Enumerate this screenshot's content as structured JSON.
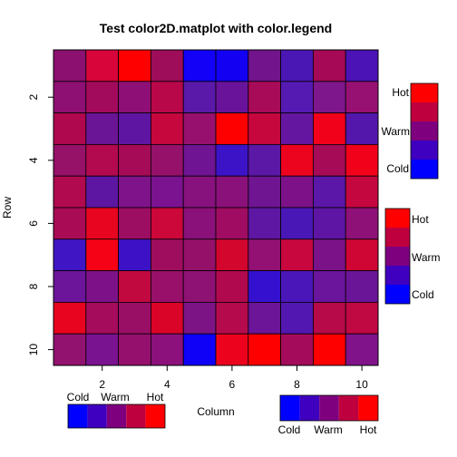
{
  "chart_data": {
    "type": "heatmap",
    "title": "Test color2D.matplot with color.legend",
    "xlabel": "Column",
    "ylabel": "Row",
    "x_ticks": [
      "2",
      "4",
      "6",
      "8",
      "10"
    ],
    "y_ticks": [
      "2",
      "4",
      "6",
      "8",
      "10"
    ],
    "x_range": [
      1,
      10
    ],
    "y_range": [
      1,
      10
    ],
    "grid": false,
    "cell_colors": [
      [
        "#8b1070",
        "#d7053a",
        "#ff0000",
        "#9e0d5a",
        "#1200f7",
        "#1300f3",
        "#72158c",
        "#4a17b5",
        "#a60a56",
        "#4b13b6"
      ],
      [
        "#8e1072",
        "#a20b5b",
        "#8e1076",
        "#b9084a",
        "#5a19a8",
        "#68139a",
        "#a80b57",
        "#541ab1",
        "#7f178c",
        "#971173"
      ],
      [
        "#b0084e",
        "#6a1596",
        "#5e16a2",
        "#c5073e",
        "#98106e",
        "#ff0000",
        "#c5073e",
        "#6516a0",
        "#f1021a",
        "#5317ac"
      ],
      [
        "#961168",
        "#b3094f",
        "#a50b56",
        "#96116a",
        "#6f1492",
        "#3d13c7",
        "#5b18a6",
        "#ec031d",
        "#a60b57",
        "#f1021a"
      ],
      [
        "#b10a4f",
        "#5d16a2",
        "#7f138a",
        "#7b1290",
        "#87127e",
        "#8a1179",
        "#6f1592",
        "#7d1288",
        "#5b17a7",
        "#c4083f"
      ],
      [
        "#a90c55",
        "#e8051f",
        "#9b0e62",
        "#cc073a",
        "#8a117a",
        "#9f0c62",
        "#5e17a2",
        "#4a17b7",
        "#5e15a3",
        "#8e1177"
      ],
      [
        "#4015c4",
        "#f60216",
        "#3d12c7",
        "#9f0d5f",
        "#951169",
        "#d3062e",
        "#921173",
        "#c8073e",
        "#7b1287",
        "#cf0634"
      ],
      [
        "#6c159a",
        "#7d1288",
        "#c1083f",
        "#98106a",
        "#8e1174",
        "#b0094d",
        "#3511cf",
        "#4a16b9",
        "#6a159b",
        "#6a1597"
      ],
      [
        "#e8041e",
        "#a50c5b",
        "#9a0f66",
        "#da0429",
        "#7d1485",
        "#b50b4c",
        "#6c1598",
        "#5217b0",
        "#b70a48",
        "#c00842"
      ],
      [
        "#92126f",
        "#7a1390",
        "#95106c",
        "#8c117c",
        "#0f00f8",
        "#ec021c",
        "#ff0000",
        "#a40c5b",
        "#ff0000",
        "#80138a"
      ]
    ],
    "legends": [
      {
        "position": "right-top",
        "orientation": "vertical",
        "labels": [
          "Hot",
          "Warm",
          "Cold"
        ],
        "colors": [
          "#ff0000",
          "#bf003f",
          "#7f007f",
          "#3f00bf",
          "#0000ff"
        ],
        "label_color": "#000000"
      },
      {
        "position": "right-middle",
        "orientation": "vertical",
        "labels": [
          "Hot",
          "Warm",
          "Cold"
        ],
        "colors": [
          "#ff0000",
          "#bf003f",
          "#7f007f",
          "#3f00bf",
          "#0000ff"
        ],
        "label_color": "#000000"
      },
      {
        "position": "bottom-left",
        "orientation": "horizontal",
        "labels": [
          "Cold",
          "Warm",
          "Hot"
        ],
        "colors": [
          "#0000ff",
          "#3f00bf",
          "#7f007f",
          "#bf003f",
          "#ff0000"
        ],
        "label_color": "#000000"
      },
      {
        "position": "bottom-right",
        "orientation": "horizontal",
        "labels": [
          "Cold",
          "Warm",
          "Hot"
        ],
        "colors": [
          "#0000ff",
          "#3f00bf",
          "#7f007f",
          "#bf003f",
          "#ff0000"
        ],
        "label_colors": [
          "#0000ff",
          "#7f007f",
          "#ff0000"
        ]
      }
    ]
  }
}
